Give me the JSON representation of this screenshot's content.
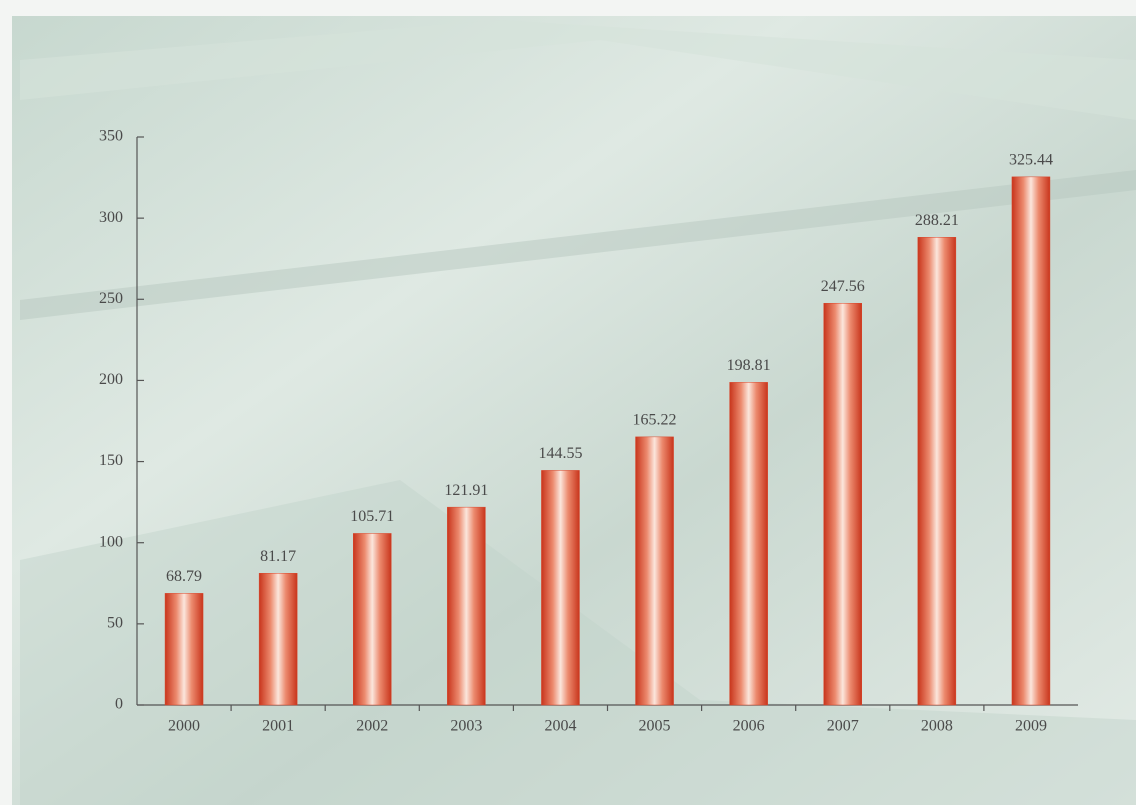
{
  "chart_data": {
    "type": "bar",
    "categories": [
      "2000",
      "2001",
      "2002",
      "2003",
      "2004",
      "2005",
      "2006",
      "2007",
      "2008",
      "2009"
    ],
    "values": [
      68.79,
      81.17,
      105.71,
      121.91,
      144.55,
      165.22,
      198.81,
      247.56,
      288.21,
      325.44
    ],
    "color": "#d9452a",
    "ylim": [
      0,
      350
    ],
    "yticks": [
      0,
      50,
      100,
      150,
      200,
      250,
      300,
      350
    ]
  }
}
